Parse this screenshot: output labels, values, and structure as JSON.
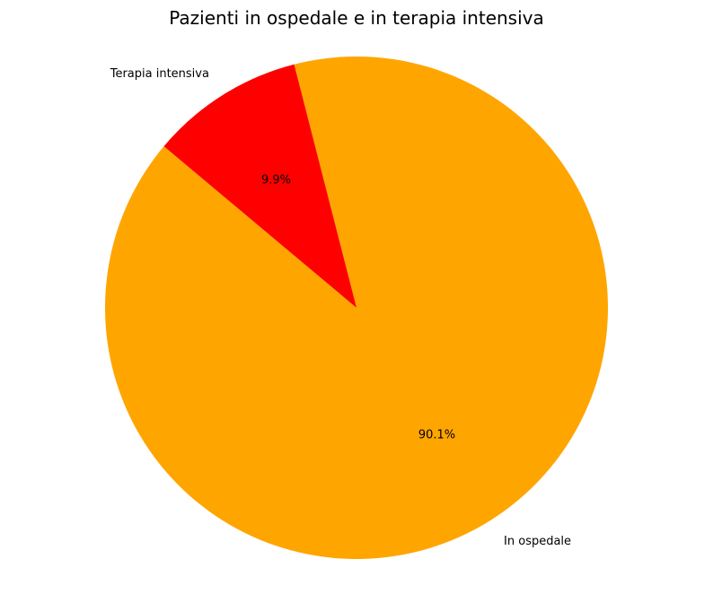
{
  "chart_data": {
    "type": "pie",
    "title": "Pazienti in ospedale e in terapia intensiva",
    "labels": [
      "In ospedale",
      "Terapia intensiva"
    ],
    "values": [
      90.1,
      9.9
    ],
    "percent_labels": [
      "90.1%",
      "9.9%"
    ],
    "colors": [
      "#FFA500",
      "#FF0000"
    ],
    "start_angle_deg": 140,
    "direction": "counterclockwise"
  }
}
